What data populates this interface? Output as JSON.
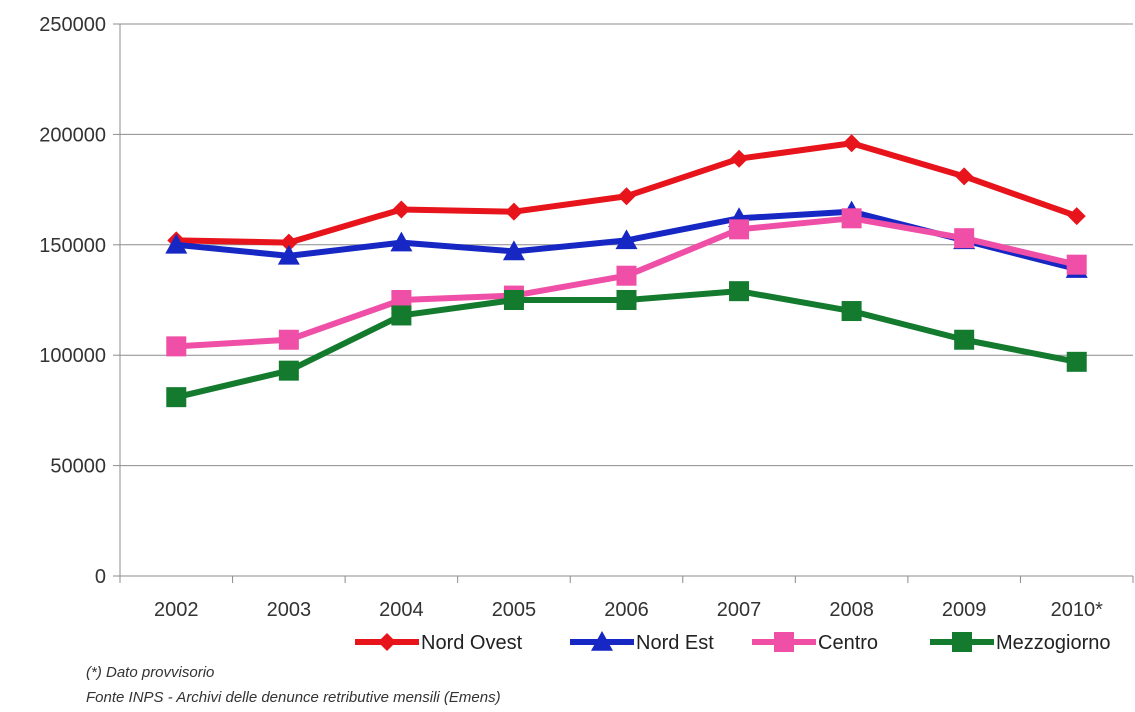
{
  "chart_data": {
    "type": "line",
    "categories": [
      "2002",
      "2003",
      "2004",
      "2005",
      "2006",
      "2007",
      "2008",
      "2009",
      "2010*"
    ],
    "ylim": [
      0,
      250000
    ],
    "yticks": [
      "0",
      "50000",
      "100000",
      "150000",
      "200000",
      "250000"
    ],
    "grid": "horizontal",
    "legend_position": "bottom-right",
    "series": [
      {
        "name": "Nord Ovest",
        "color": "#e8141b",
        "marker": "diamond",
        "values": [
          152000,
          151000,
          166000,
          165000,
          172000,
          189000,
          196000,
          181000,
          163000
        ]
      },
      {
        "name": "Nord Est",
        "color": "#1627c4",
        "marker": "triangle",
        "values": [
          150000,
          145000,
          151000,
          147000,
          152000,
          162000,
          165000,
          152000,
          139000
        ]
      },
      {
        "name": "Centro",
        "color": "#ef4fa6",
        "marker": "square",
        "values": [
          104000,
          107000,
          125000,
          127000,
          136000,
          157000,
          162000,
          153000,
          141000
        ]
      },
      {
        "name": "Mezzogiorno",
        "color": "#137a2e",
        "marker": "square",
        "values": [
          81000,
          93000,
          118000,
          125000,
          125000,
          129000,
          120000,
          107000,
          97000
        ]
      }
    ]
  },
  "notes": {
    "line1": "(*) Dato provvisorio",
    "line2": "Fonte INPS - Archivi delle denunce retributive mensili (Emens)"
  }
}
